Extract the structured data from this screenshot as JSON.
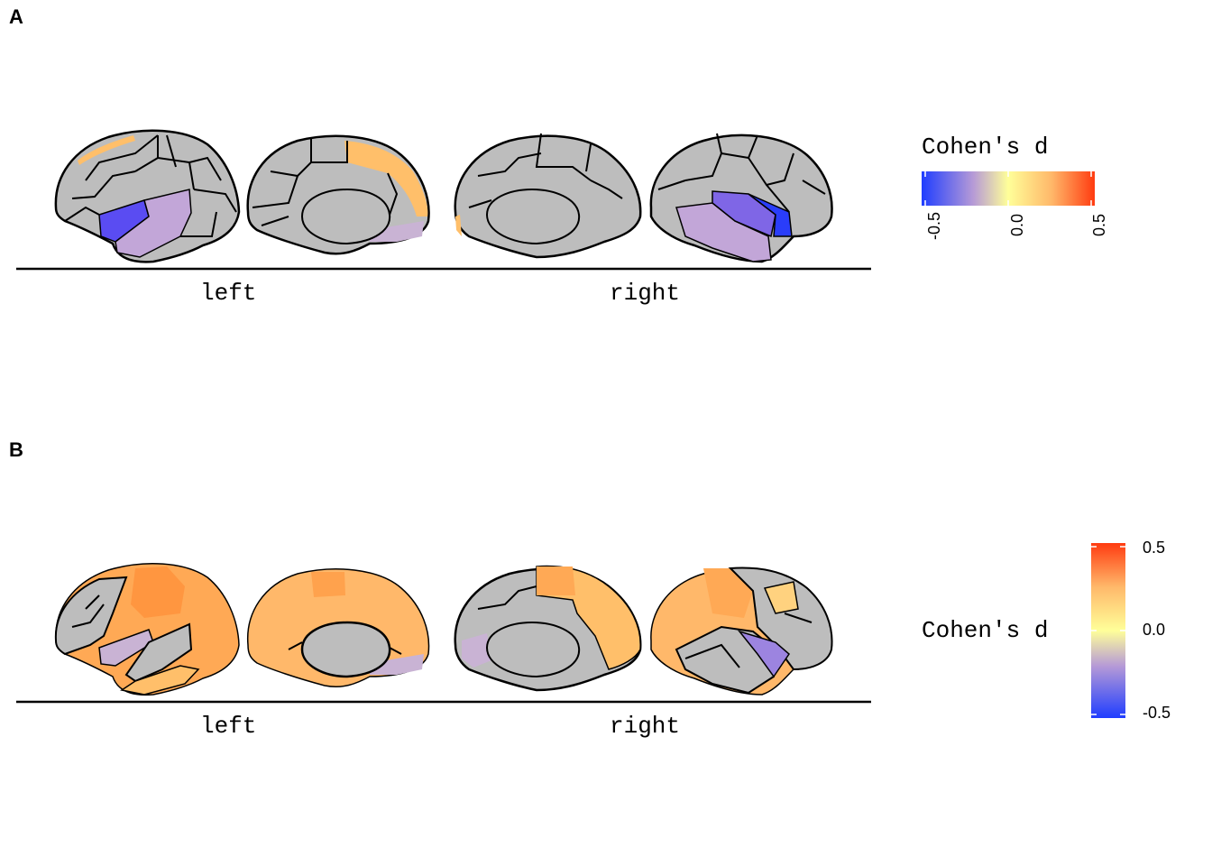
{
  "panels": [
    {
      "label": "A",
      "hemispheres": [
        "left",
        "right"
      ],
      "legend": {
        "title": "Cohen's d",
        "orientation": "horizontal",
        "ticks": [
          "-0.5",
          "0.0",
          "0.5"
        ],
        "tick_values": [
          -0.5,
          0.0,
          0.5
        ],
        "colors": [
          "#1f3dff",
          "#c9b3d4",
          "#ffff99",
          "#ffb86a",
          "#ff3b10"
        ]
      }
    },
    {
      "label": "B",
      "hemispheres": [
        "left",
        "right"
      ],
      "legend": {
        "title": "Cohen's d",
        "orientation": "vertical",
        "ticks": [
          "0.5",
          "0.0",
          "-0.5"
        ],
        "tick_values": [
          0.5,
          0.0,
          -0.5
        ],
        "colors": [
          "#1f3dff",
          "#c9b3d4",
          "#ffff99",
          "#ffb86a",
          "#ff3b10"
        ]
      }
    }
  ],
  "colors": {
    "no_effect": "#bdbdbd",
    "outline": "#000000"
  }
}
